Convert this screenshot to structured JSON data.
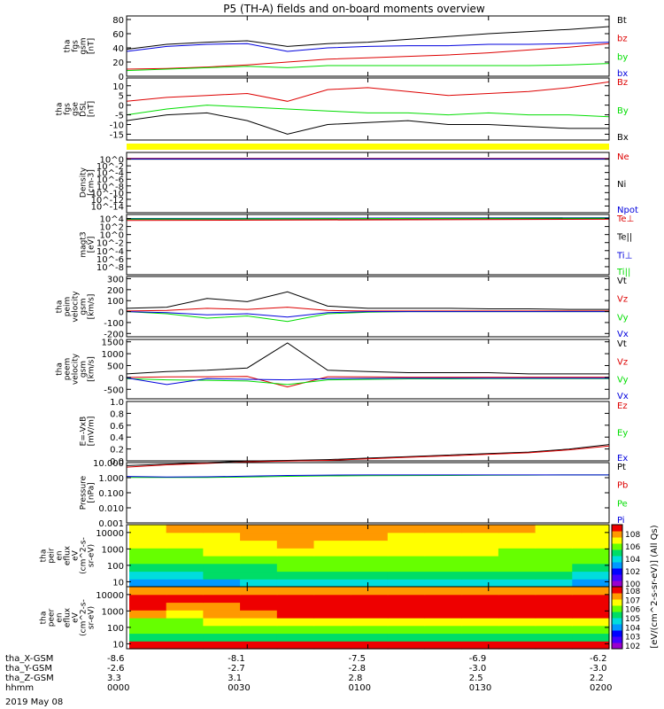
{
  "title": "P5 (TH-A) fields and on-board moments overview",
  "date": "2019 May 08",
  "colors": {
    "black": "#000000",
    "red": "#dd0000",
    "green": "#00dd00",
    "blue": "#0000dd",
    "yellow": "#ffff00"
  },
  "time_ticks": [
    "0000",
    "0030",
    "0100",
    "0130",
    "0200"
  ],
  "orbit_rows": [
    {
      "label": "tha_X-GSM",
      "values": [
        "-8.6",
        "-8.1",
        "-7.5",
        "-6.9",
        "-6.2"
      ]
    },
    {
      "label": "tha_Y-GSM",
      "values": [
        "-2.6",
        "-2.7",
        "-2.8",
        "-3.0",
        "-3.0"
      ]
    },
    {
      "label": "tha_Z-GSM",
      "values": [
        "3.3",
        "3.1",
        "2.8",
        "2.5",
        "2.2"
      ]
    },
    {
      "label": "hhmm",
      "values": [
        "0000",
        "0030",
        "0100",
        "0130",
        "0200"
      ]
    }
  ],
  "colorbar": {
    "label": "[eV/(cm^2-s-sr-eV)] (All Qs)",
    "upper_ticks": [
      "10^8",
      "10^6",
      "10^4",
      "10^2",
      "10^0"
    ],
    "lower_ticks": [
      "10^8",
      "10^7",
      "10^6",
      "10^5",
      "10^4",
      "10^3",
      "10^2"
    ]
  },
  "chart_data": [
    {
      "type": "line",
      "ylabel_lines": [
        "tha",
        "fgs",
        "gsm",
        "[nT]"
      ],
      "ylim": [
        0,
        85
      ],
      "ticks": [
        "80",
        "60",
        "40",
        "20",
        "0"
      ],
      "legend": [
        {
          "name": "Bt",
          "color": "black"
        },
        {
          "name": "bz",
          "color": "red"
        },
        {
          "name": "by",
          "color": "green"
        },
        {
          "name": "bx",
          "color": "blue"
        }
      ],
      "x": [
        0,
        10,
        20,
        30,
        40,
        50,
        60,
        70,
        80,
        90,
        100,
        110,
        120
      ],
      "series": [
        {
          "name": "Bt",
          "color": "black",
          "values": [
            38,
            45,
            48,
            50,
            42,
            46,
            48,
            52,
            56,
            60,
            63,
            66,
            70
          ]
        },
        {
          "name": "bz",
          "color": "red",
          "values": [
            10,
            11,
            13,
            16,
            20,
            24,
            26,
            28,
            30,
            33,
            37,
            41,
            46
          ]
        },
        {
          "name": "by",
          "color": "green",
          "values": [
            8,
            10,
            12,
            14,
            12,
            15,
            15,
            15,
            15,
            15,
            15,
            16,
            18
          ]
        },
        {
          "name": "bx",
          "color": "blue",
          "values": [
            35,
            42,
            45,
            46,
            35,
            40,
            42,
            43,
            43,
            45,
            45,
            46,
            48
          ]
        }
      ]
    },
    {
      "type": "line",
      "ylabel_lines": [
        "tha",
        "fgs",
        "gse",
        "DSL",
        "[nT]"
      ],
      "ylim": [
        -18,
        14
      ],
      "ticks": [
        "10",
        "5",
        "0",
        "-5",
        "-10",
        "-15"
      ],
      "legend": [
        {
          "name": "Bz",
          "color": "red"
        },
        {
          "name": "By",
          "color": "green"
        },
        {
          "name": "Bx",
          "color": "black"
        }
      ],
      "x": [
        0,
        10,
        20,
        30,
        40,
        50,
        60,
        70,
        80,
        90,
        100,
        110,
        120
      ],
      "series": [
        {
          "name": "Bz",
          "color": "red",
          "values": [
            2,
            4,
            5,
            6,
            2,
            8,
            9,
            7,
            5,
            6,
            7,
            9,
            12
          ]
        },
        {
          "name": "By",
          "color": "green",
          "values": [
            -5,
            -2,
            0,
            -1,
            -2,
            -3,
            -4,
            -4,
            -5,
            -4,
            -5,
            -5,
            -6
          ]
        },
        {
          "name": "Bx",
          "color": "black",
          "values": [
            -8,
            -5,
            -4,
            -8,
            -15,
            -10,
            -9,
            -8,
            -10,
            -10,
            -11,
            -12,
            -12
          ]
        }
      ]
    },
    {
      "type": "line",
      "ylabel_lines": [
        "Density",
        "[cm-3]"
      ],
      "ylim": [
        -16,
        2
      ],
      "log": true,
      "ticks": [
        "10^0",
        "10^-2",
        "10^-4",
        "10^-6",
        "10^-8",
        "10^-10",
        "10^-12",
        "10^-14"
      ],
      "legend": [
        {
          "name": "Ne",
          "color": "red"
        },
        {
          "name": "Ni",
          "color": "black"
        },
        {
          "name": "Npot",
          "color": "blue"
        }
      ],
      "x": [
        0,
        120
      ],
      "series": [
        {
          "name": "Ne",
          "color": "red",
          "values": [
            0.2,
            0.2
          ]
        },
        {
          "name": "Ni",
          "color": "black",
          "values": [
            0,
            0
          ]
        },
        {
          "name": "Npot",
          "color": "blue",
          "values": [
            0.1,
            0.1
          ]
        }
      ]
    },
    {
      "type": "line",
      "ylabel_lines": [
        "magt3",
        "[eV]"
      ],
      "ylim": [
        -10,
        5
      ],
      "log": true,
      "ticks": [
        "10^4",
        "10^2",
        "10^0",
        "10^-2",
        "10^-4",
        "10^-6",
        "10^-8"
      ],
      "legend": [
        {
          "name": "Te⊥",
          "color": "red"
        },
        {
          "name": "Te||",
          "color": "black"
        },
        {
          "name": "Ti⊥",
          "color": "blue"
        },
        {
          "name": "Ti||",
          "color": "green"
        }
      ],
      "x": [
        0,
        120
      ],
      "series": [
        {
          "name": "Te⊥",
          "color": "red",
          "values": [
            3.5,
            3.8
          ]
        },
        {
          "name": "Te||",
          "color": "black",
          "values": [
            3.8,
            4.0
          ]
        },
        {
          "name": "Ti⊥",
          "color": "blue",
          "values": [
            4.0,
            4.2
          ]
        },
        {
          "name": "Ti||",
          "color": "green",
          "values": [
            3.9,
            4.1
          ]
        }
      ]
    },
    {
      "type": "line",
      "ylabel_lines": [
        "tha",
        "peim",
        "velocity",
        "gsm",
        "[km/s]"
      ],
      "ylim": [
        -230,
        320
      ],
      "ticks": [
        "300",
        "200",
        "100",
        "0",
        "-100",
        "-200"
      ],
      "legend": [
        {
          "name": "Vt",
          "color": "black"
        },
        {
          "name": "Vz",
          "color": "red"
        },
        {
          "name": "Vy",
          "color": "green"
        },
        {
          "name": "Vx",
          "color": "blue"
        }
      ],
      "x": [
        0,
        10,
        20,
        30,
        40,
        50,
        60,
        70,
        80,
        90,
        100,
        110,
        120
      ],
      "series": [
        {
          "name": "Vt",
          "color": "black",
          "values": [
            30,
            40,
            120,
            90,
            180,
            50,
            30,
            30,
            30,
            25,
            25,
            20,
            20
          ]
        },
        {
          "name": "Vz",
          "color": "red",
          "values": [
            5,
            10,
            30,
            20,
            40,
            10,
            5,
            5,
            5,
            5,
            5,
            5,
            5
          ]
        },
        {
          "name": "Vy",
          "color": "green",
          "values": [
            0,
            -20,
            -60,
            -40,
            -90,
            -20,
            -5,
            0,
            0,
            0,
            0,
            0,
            0
          ]
        },
        {
          "name": "Vx",
          "color": "blue",
          "values": [
            0,
            -10,
            -30,
            -20,
            -50,
            -10,
            0,
            0,
            0,
            0,
            0,
            0,
            0
          ]
        }
      ]
    },
    {
      "type": "line",
      "ylabel_lines": [
        "tha",
        "peem",
        "velocity",
        "gsm",
        "[km/s]"
      ],
      "ylim": [
        -900,
        1600
      ],
      "ticks": [
        "1500",
        "1000",
        "500",
        "0",
        "-500"
      ],
      "legend": [
        {
          "name": "Vt",
          "color": "black"
        },
        {
          "name": "Vz",
          "color": "red"
        },
        {
          "name": "Vy",
          "color": "green"
        },
        {
          "name": "Vx",
          "color": "blue"
        }
      ],
      "x": [
        0,
        10,
        20,
        30,
        40,
        50,
        60,
        70,
        80,
        90,
        100,
        110,
        120
      ],
      "series": [
        {
          "name": "Vt",
          "color": "black",
          "values": [
            150,
            250,
            300,
            400,
            1450,
            300,
            250,
            200,
            200,
            200,
            150,
            150,
            150
          ]
        },
        {
          "name": "Vz",
          "color": "red",
          "values": [
            0,
            20,
            30,
            40,
            -400,
            30,
            20,
            10,
            10,
            10,
            10,
            10,
            10
          ]
        },
        {
          "name": "Vy",
          "color": "green",
          "values": [
            -50,
            -100,
            -120,
            -150,
            -300,
            -100,
            -80,
            -60,
            -60,
            -50,
            -50,
            -50,
            -50
          ]
        },
        {
          "name": "Vx",
          "color": "blue",
          "values": [
            -20,
            -300,
            -50,
            -80,
            -100,
            -50,
            -40,
            -30,
            -30,
            -30,
            -30,
            -30,
            -30
          ]
        }
      ]
    },
    {
      "type": "line",
      "ylabel_lines": [
        "E=-VxB",
        "[mV/m]"
      ],
      "ylim": [
        0,
        1
      ],
      "ticks": [
        "1.0",
        "0.8",
        "0.6",
        "0.4",
        "0.2",
        "0.0"
      ],
      "legend": [
        {
          "name": "Ez",
          "color": "red"
        },
        {
          "name": "Ey",
          "color": "green"
        },
        {
          "name": "Ex",
          "color": "blue"
        }
      ],
      "x": [],
      "series": []
    },
    {
      "type": "line",
      "ylabel_lines": [
        "Pressure",
        "[nPa]"
      ],
      "ylim": [
        -3,
        1
      ],
      "log": true,
      "ticks": [
        "10.000",
        "1.000",
        "0.100",
        "0.010",
        "0.001"
      ],
      "legend": [
        {
          "name": "Pt",
          "color": "black"
        },
        {
          "name": "Pb",
          "color": "red"
        },
        {
          "name": "Pe",
          "color": "green"
        },
        {
          "name": "Pi",
          "color": "blue"
        }
      ],
      "x": [
        0,
        10,
        20,
        30,
        40,
        50,
        60,
        70,
        80,
        90,
        100,
        110,
        120
      ],
      "series": [
        {
          "name": "Pt",
          "color": "black",
          "values": [
            0.8,
            0.9,
            1.0,
            1.1,
            1.15,
            1.2,
            1.3,
            1.4,
            1.5,
            1.6,
            1.7,
            1.9,
            2.2
          ]
        },
        {
          "name": "Pb",
          "color": "red",
          "values": [
            0.7,
            0.85,
            0.95,
            1.05,
            1.1,
            1.15,
            1.25,
            1.35,
            1.45,
            1.55,
            1.65,
            1.85,
            2.1
          ]
        },
        {
          "name": "Pe",
          "color": "green",
          "values": [
            0.02,
            0.015,
            0.02,
            0.04,
            0.09,
            0.12,
            0.13,
            0.14,
            0.15,
            0.16,
            0.17,
            0.18,
            0.18
          ]
        },
        {
          "name": "Pi",
          "color": "blue",
          "values": [
            0.08,
            0.04,
            0.06,
            0.1,
            0.15,
            0.17,
            0.18,
            0.18,
            0.18,
            0.18,
            0.18,
            0.18,
            0.18
          ]
        }
      ]
    },
    {
      "type": "heatmap",
      "ylabel_lines": [
        "tha",
        "peir",
        "en",
        "eflux",
        "eV",
        "(cm^2-s-",
        "sr-eV)"
      ],
      "ylim": [
        5,
        30000
      ],
      "log": true,
      "ticks": [
        "10000",
        "1000",
        "100",
        "10"
      ],
      "rows_low_to_high": [
        [
          3,
          3,
          3,
          4,
          4,
          4,
          4,
          4,
          4,
          4,
          4,
          4,
          3
        ],
        [
          4,
          4,
          5,
          5,
          5,
          5,
          5,
          5,
          5,
          5,
          5,
          5,
          4
        ],
        [
          5,
          5,
          5,
          5,
          6,
          6,
          6,
          6,
          6,
          6,
          6,
          6,
          5
        ],
        [
          6,
          6,
          6,
          6,
          6,
          6,
          6,
          6,
          6,
          6,
          6,
          6,
          6
        ],
        [
          6,
          6,
          7,
          7,
          7,
          7,
          7,
          7,
          7,
          7,
          6,
          6,
          6
        ],
        [
          7,
          7,
          7,
          7,
          8,
          7,
          7,
          7,
          7,
          7,
          7,
          7,
          7
        ],
        [
          7,
          7,
          7,
          8,
          8,
          8,
          8,
          7,
          7,
          7,
          7,
          7,
          7
        ],
        [
          7,
          8,
          8,
          8,
          8,
          8,
          8,
          8,
          8,
          8,
          8,
          7,
          7
        ]
      ]
    },
    {
      "type": "heatmap",
      "ylabel_lines": [
        "tha",
        "peer",
        "en",
        "eflux",
        "eV",
        "(cm^2-s-",
        "sr-eV)"
      ],
      "ylim": [
        5,
        30000
      ],
      "log": true,
      "ticks": [
        "10000",
        "1000",
        "100",
        "10"
      ],
      "rows_low_to_high": [
        [
          9,
          9,
          9,
          9,
          9,
          9,
          9,
          9,
          9,
          9,
          9,
          9,
          9
        ],
        [
          5,
          5,
          5,
          5,
          5,
          5,
          5,
          5,
          5,
          5,
          5,
          5,
          5
        ],
        [
          6,
          6,
          6,
          6,
          6,
          6,
          6,
          6,
          6,
          6,
          6,
          6,
          6
        ],
        [
          6,
          6,
          7,
          7,
          7,
          7,
          7,
          7,
          7,
          7,
          7,
          7,
          7
        ],
        [
          8,
          7,
          8,
          8,
          9,
          9,
          9,
          9,
          9,
          9,
          9,
          9,
          9
        ],
        [
          9,
          8,
          8,
          9,
          9,
          9,
          9,
          9,
          9,
          9,
          9,
          9,
          9
        ],
        [
          9,
          9,
          9,
          9,
          9,
          9,
          9,
          9,
          9,
          9,
          9,
          9,
          9
        ],
        [
          8,
          8,
          8,
          8,
          8,
          8,
          8,
          8,
          8,
          8,
          8,
          8,
          8
        ]
      ]
    }
  ]
}
